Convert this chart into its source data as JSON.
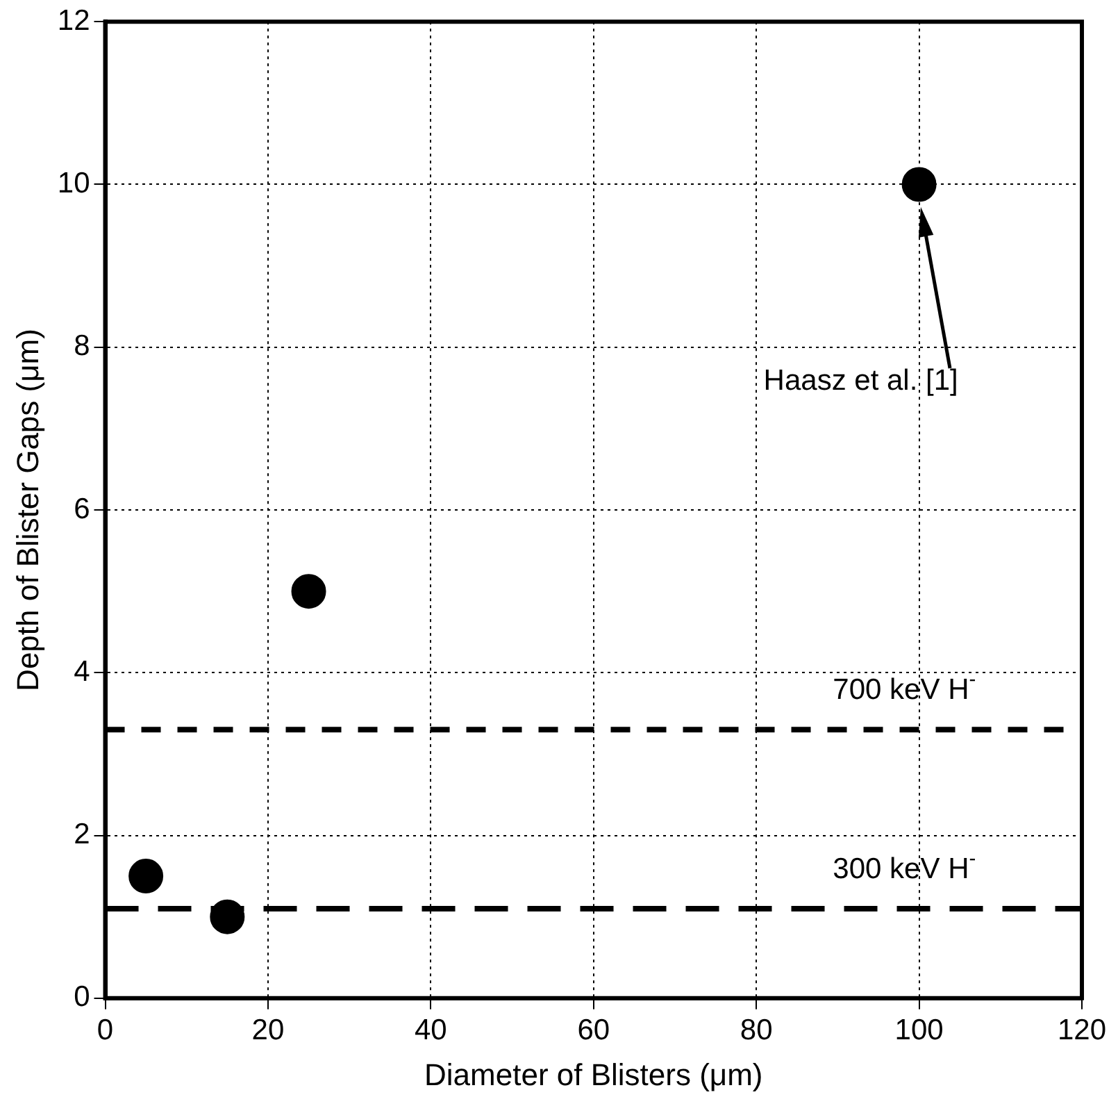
{
  "chart_data": {
    "type": "scatter",
    "xlabel": "Diameter of Blisters (μm)",
    "ylabel": "Depth of Blister Gaps (μm)",
    "x": [
      5,
      15,
      25,
      100
    ],
    "values": [
      1.5,
      1,
      5,
      10
    ],
    "color": "#000000",
    "marker": "circle",
    "xlim": [
      0,
      120
    ],
    "xticks": [
      0,
      20,
      40,
      60,
      80,
      100,
      120
    ],
    "ylim": [
      0,
      12
    ],
    "yticks": [
      0,
      2,
      4,
      6,
      8,
      10,
      12
    ],
    "grid": true,
    "legend": false,
    "ref_lines": [
      {
        "axis": "y",
        "value": 3.3,
        "label": "700 keV H$^{-}$",
        "color": "#000000",
        "line_style": "dashed"
      },
      {
        "axis": "y",
        "value": 1.1,
        "label": "300 keV H$^{-}$",
        "color": "#000000",
        "line_style": "dashed"
      }
    ],
    "annotations": [
      "Haasz et al. [1]"
    ]
  }
}
